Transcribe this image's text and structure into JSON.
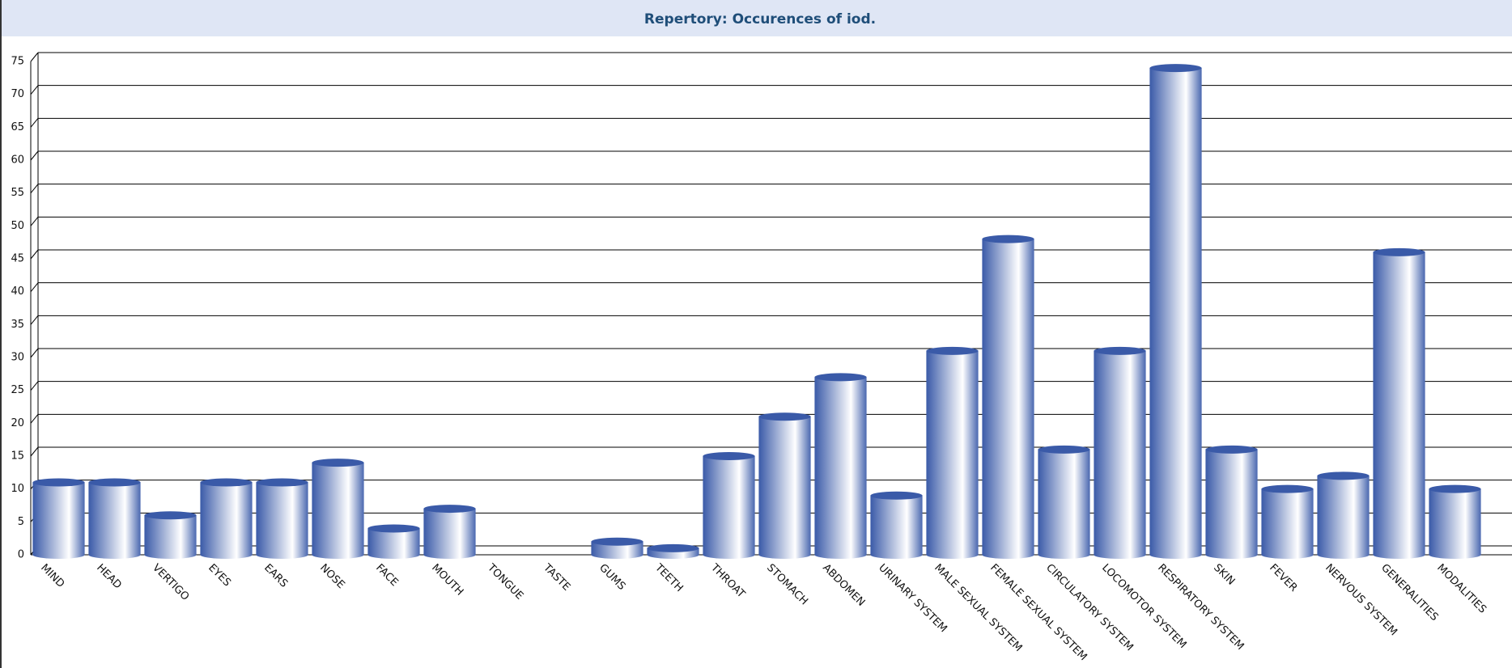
{
  "chart_data": {
    "type": "bar",
    "title": "Repertory: Occurences of iod.",
    "categories": [
      "MIND",
      "HEAD",
      "VERTIGO",
      "EYES",
      "EARS",
      "NOSE",
      "FACE",
      "MOUTH",
      "TONGUE",
      "TASTE",
      "GUMS",
      "TEETH",
      "THROAT",
      "STOMACH",
      "ABDOMEN",
      "URINARY SYSTEM",
      "MALE SEXUAL SYSTEM",
      "FEMALE SEXUAL SYSTEM",
      "CIRCULATORY SYSTEM",
      "LOCOMOTOR SYSTEM",
      "RESPIRATORY SYSTEM",
      "SKIN",
      "FEVER",
      "NERVOUS SYSTEM",
      "GENERALITIES",
      "MODALITIES"
    ],
    "values": [
      11,
      11,
      6,
      11,
      11,
      14,
      4,
      7,
      0,
      0,
      2,
      1,
      15,
      21,
      27,
      9,
      31,
      48,
      16,
      31,
      74,
      16,
      10,
      12,
      46,
      10
    ],
    "color": "#3a5aa8",
    "ylim": [
      0,
      75
    ],
    "yticks": [
      0,
      5,
      10,
      15,
      20,
      25,
      30,
      35,
      40,
      45,
      50,
      55,
      60,
      65,
      70,
      75
    ],
    "grid": true
  }
}
